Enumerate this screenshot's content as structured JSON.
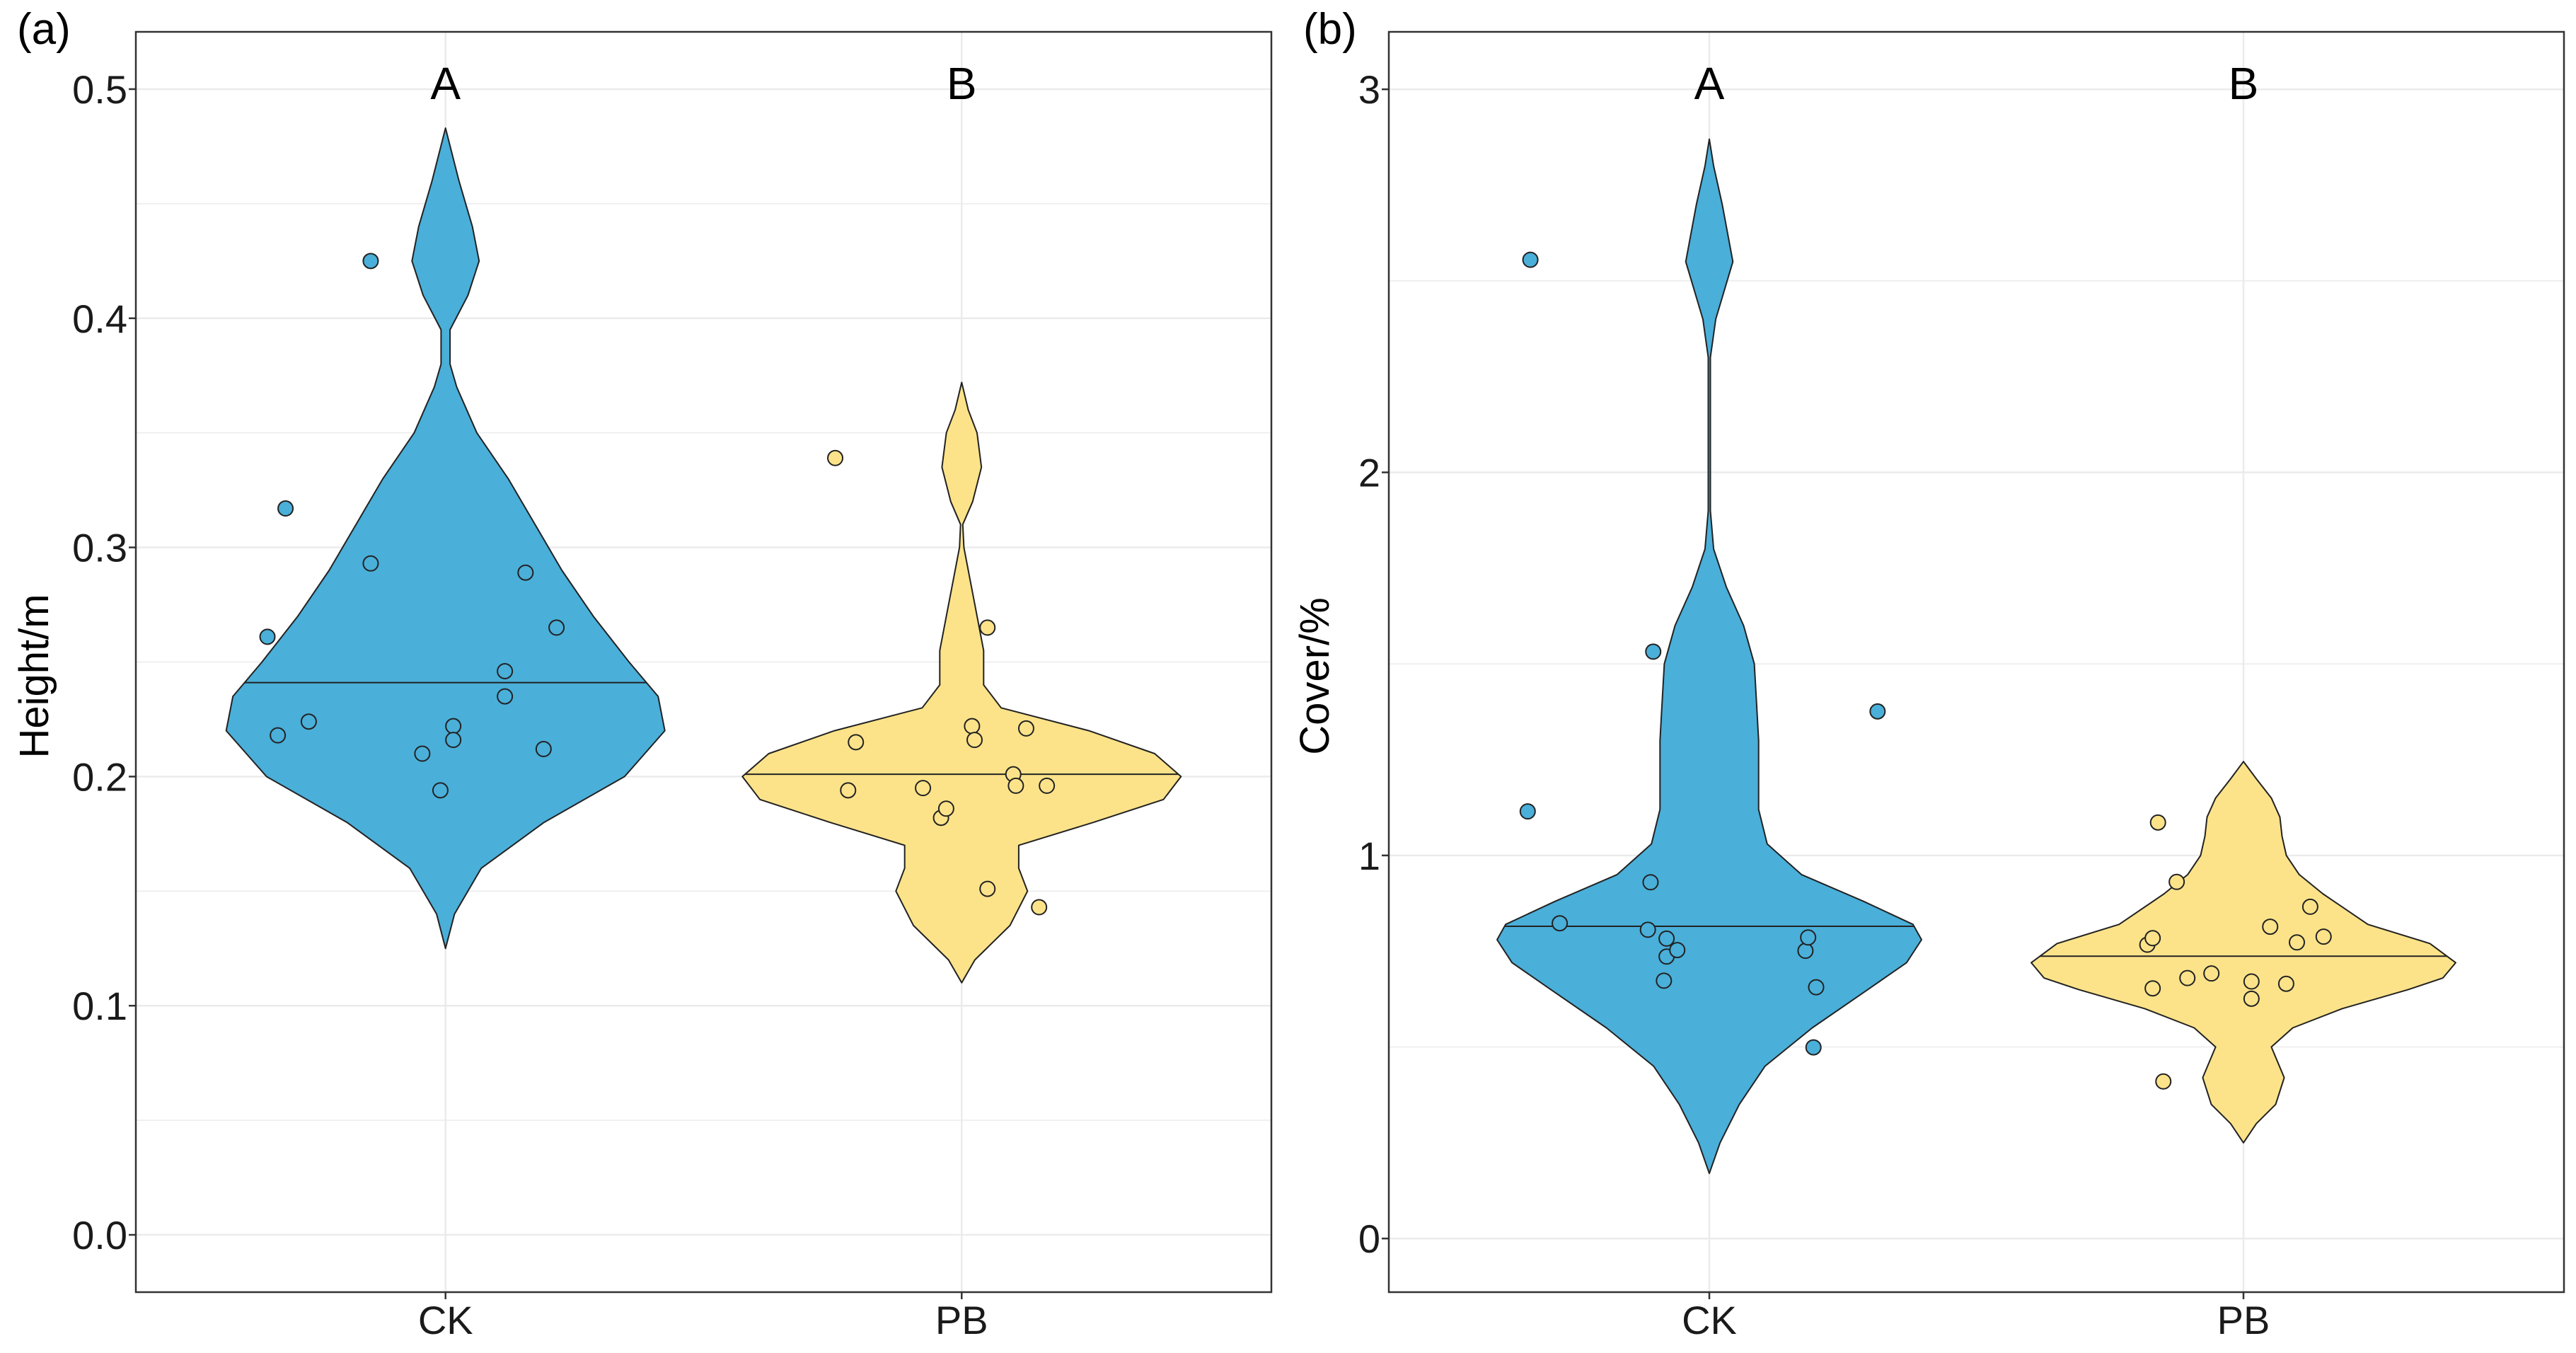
{
  "colors": {
    "ck_fill": "#4AAFD9",
    "pb_fill": "#FCE38A",
    "outline": "#222222",
    "grid": "#ebebeb",
    "panel_border": "#333333"
  },
  "chart_data": [
    {
      "type": "violin",
      "panel_label": "(a)",
      "xlabel": "",
      "ylabel": "Height/m",
      "ylim": [
        -0.025,
        0.525
      ],
      "yticks": [
        0.0,
        0.1,
        0.2,
        0.3,
        0.4,
        0.5
      ],
      "ytick_labels": [
        "0.0",
        "0.1",
        "0.2",
        "0.3",
        "0.4",
        "0.5"
      ],
      "categories": [
        "CK",
        "PB"
      ],
      "significance_letters": [
        "A",
        "B"
      ],
      "series": [
        {
          "name": "CK",
          "color": "#4AAFD9",
          "median": 0.241,
          "violin_min": 0.125,
          "violin_max": 0.483,
          "density_profile": [
            [
              0.125,
              0.0
            ],
            [
              0.14,
              0.04
            ],
            [
              0.16,
              0.16
            ],
            [
              0.18,
              0.44
            ],
            [
              0.2,
              0.8
            ],
            [
              0.22,
              0.98
            ],
            [
              0.235,
              0.95
            ],
            [
              0.25,
              0.82
            ],
            [
              0.27,
              0.66
            ],
            [
              0.29,
              0.52
            ],
            [
              0.31,
              0.4
            ],
            [
              0.33,
              0.28
            ],
            [
              0.35,
              0.14
            ],
            [
              0.37,
              0.05
            ],
            [
              0.38,
              0.02
            ],
            [
              0.395,
              0.02
            ],
            [
              0.41,
              0.1
            ],
            [
              0.425,
              0.15
            ],
            [
              0.44,
              0.12
            ],
            [
              0.46,
              0.06
            ],
            [
              0.483,
              0.0
            ]
          ],
          "points": [
            {
              "x": -0.69,
              "y": 0.261
            },
            {
              "x": -0.62,
              "y": 0.317
            },
            {
              "x": -0.65,
              "y": 0.218
            },
            {
              "x": -0.53,
              "y": 0.224
            },
            {
              "x": -0.29,
              "y": 0.425
            },
            {
              "x": -0.29,
              "y": 0.293
            },
            {
              "x": -0.09,
              "y": 0.21
            },
            {
              "x": -0.02,
              "y": 0.194
            },
            {
              "x": 0.03,
              "y": 0.222
            },
            {
              "x": 0.03,
              "y": 0.216
            },
            {
              "x": 0.23,
              "y": 0.246
            },
            {
              "x": 0.23,
              "y": 0.235
            },
            {
              "x": 0.31,
              "y": 0.289
            },
            {
              "x": 0.38,
              "y": 0.212
            },
            {
              "x": 0.43,
              "y": 0.265
            }
          ]
        },
        {
          "name": "PB",
          "color": "#FCE38A",
          "median": 0.201,
          "violin_min": 0.11,
          "violin_max": 0.372,
          "density_profile": [
            [
              0.11,
              0.0
            ],
            [
              0.12,
              0.06
            ],
            [
              0.135,
              0.22
            ],
            [
              0.15,
              0.3
            ],
            [
              0.16,
              0.26
            ],
            [
              0.17,
              0.26
            ],
            [
              0.18,
              0.6
            ],
            [
              0.19,
              0.92
            ],
            [
              0.2,
              1.0
            ],
            [
              0.21,
              0.88
            ],
            [
              0.22,
              0.58
            ],
            [
              0.23,
              0.18
            ],
            [
              0.24,
              0.1
            ],
            [
              0.255,
              0.1
            ],
            [
              0.27,
              0.07
            ],
            [
              0.285,
              0.04
            ],
            [
              0.3,
              0.01
            ],
            [
              0.31,
              0.005
            ],
            [
              0.32,
              0.05
            ],
            [
              0.335,
              0.09
            ],
            [
              0.35,
              0.07
            ],
            [
              0.36,
              0.03
            ],
            [
              0.372,
              0.0
            ]
          ],
          "points": [
            {
              "x": -0.49,
              "y": 0.339
            },
            {
              "x": -0.41,
              "y": 0.215
            },
            {
              "x": -0.44,
              "y": 0.194
            },
            {
              "x": -0.15,
              "y": 0.195
            },
            {
              "x": -0.08,
              "y": 0.182
            },
            {
              "x": -0.06,
              "y": 0.186
            },
            {
              "x": 0.04,
              "y": 0.222
            },
            {
              "x": 0.05,
              "y": 0.216
            },
            {
              "x": 0.1,
              "y": 0.265
            },
            {
              "x": 0.1,
              "y": 0.151
            },
            {
              "x": 0.2,
              "y": 0.201
            },
            {
              "x": 0.21,
              "y": 0.196
            },
            {
              "x": 0.25,
              "y": 0.221
            },
            {
              "x": 0.3,
              "y": 0.143
            },
            {
              "x": 0.33,
              "y": 0.196
            }
          ]
        }
      ]
    },
    {
      "type": "violin",
      "panel_label": "(b)",
      "xlabel": "",
      "ylabel": "Cover/%",
      "ylim": [
        -0.14,
        3.15
      ],
      "yticks": [
        0,
        1,
        2,
        3
      ],
      "ytick_labels": [
        "0",
        "1",
        "2",
        "3"
      ],
      "categories": [
        "CK",
        "PB"
      ],
      "significance_letters": [
        "A",
        "B"
      ],
      "series": [
        {
          "name": "CK",
          "color": "#4AAFD9",
          "median": 0.815,
          "violin_min": 0.17,
          "violin_max": 2.87,
          "density_profile": [
            [
              0.17,
              0.0
            ],
            [
              0.25,
              0.05
            ],
            [
              0.35,
              0.14
            ],
            [
              0.45,
              0.26
            ],
            [
              0.55,
              0.48
            ],
            [
              0.65,
              0.74
            ],
            [
              0.72,
              0.92
            ],
            [
              0.78,
              0.99
            ],
            [
              0.82,
              0.95
            ],
            [
              0.88,
              0.72
            ],
            [
              0.95,
              0.43
            ],
            [
              1.03,
              0.27
            ],
            [
              1.12,
              0.23
            ],
            [
              1.2,
              0.23
            ],
            [
              1.3,
              0.23
            ],
            [
              1.4,
              0.22
            ],
            [
              1.5,
              0.21
            ],
            [
              1.6,
              0.16
            ],
            [
              1.7,
              0.08
            ],
            [
              1.8,
              0.02
            ],
            [
              1.9,
              0.005
            ],
            [
              2.3,
              0.005
            ],
            [
              2.4,
              0.03
            ],
            [
              2.55,
              0.11
            ],
            [
              2.7,
              0.06
            ],
            [
              2.8,
              0.02
            ],
            [
              2.87,
              0.0
            ]
          ],
          "points": [
            {
              "x": -0.67,
              "y": 2.555
            },
            {
              "x": -0.68,
              "y": 1.115
            },
            {
              "x": -0.56,
              "y": 0.823
            },
            {
              "x": -0.22,
              "y": 0.93
            },
            {
              "x": -0.23,
              "y": 0.806
            },
            {
              "x": -0.16,
              "y": 0.783
            },
            {
              "x": -0.16,
              "y": 0.736
            },
            {
              "x": -0.12,
              "y": 0.753
            },
            {
              "x": -0.17,
              "y": 0.673
            },
            {
              "x": -0.21,
              "y": 1.532
            },
            {
              "x": 0.36,
              "y": 0.751
            },
            {
              "x": 0.37,
              "y": 0.786
            },
            {
              "x": 0.4,
              "y": 0.656
            },
            {
              "x": 0.39,
              "y": 0.499
            },
            {
              "x": 0.63,
              "y": 1.376
            }
          ]
        },
        {
          "name": "PB",
          "color": "#FCE38A",
          "median": 0.737,
          "violin_min": 0.25,
          "violin_max": 1.245,
          "density_profile": [
            [
              0.25,
              0.0
            ],
            [
              0.3,
              0.06
            ],
            [
              0.35,
              0.15
            ],
            [
              0.42,
              0.19
            ],
            [
              0.5,
              0.13
            ],
            [
              0.55,
              0.23
            ],
            [
              0.6,
              0.46
            ],
            [
              0.65,
              0.77
            ],
            [
              0.68,
              0.93
            ],
            [
              0.72,
              0.99
            ],
            [
              0.77,
              0.87
            ],
            [
              0.82,
              0.58
            ],
            [
              0.9,
              0.37
            ],
            [
              0.95,
              0.26
            ],
            [
              1.0,
              0.2
            ],
            [
              1.05,
              0.18
            ],
            [
              1.1,
              0.17
            ],
            [
              1.15,
              0.13
            ],
            [
              1.2,
              0.06
            ],
            [
              1.245,
              0.0
            ]
          ],
          "points": [
            {
              "x": -0.32,
              "y": 1.086
            },
            {
              "x": -0.36,
              "y": 0.767
            },
            {
              "x": -0.34,
              "y": 0.784
            },
            {
              "x": -0.34,
              "y": 0.653
            },
            {
              "x": -0.3,
              "y": 0.41
            },
            {
              "x": -0.25,
              "y": 0.931
            },
            {
              "x": -0.21,
              "y": 0.68
            },
            {
              "x": -0.12,
              "y": 0.692
            },
            {
              "x": 0.03,
              "y": 0.671
            },
            {
              "x": 0.03,
              "y": 0.626
            },
            {
              "x": 0.1,
              "y": 0.814
            },
            {
              "x": 0.16,
              "y": 0.665
            },
            {
              "x": 0.2,
              "y": 0.773
            },
            {
              "x": 0.25,
              "y": 0.866
            },
            {
              "x": 0.3,
              "y": 0.788
            }
          ]
        }
      ]
    }
  ]
}
